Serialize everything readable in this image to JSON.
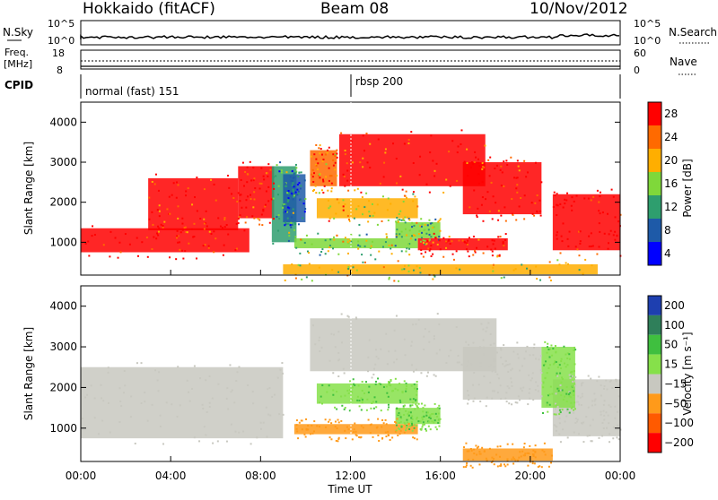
{
  "header": {
    "station": "Hokkaido (fitACF)",
    "beam": "Beam 08",
    "date": "10/Nov/2012"
  },
  "nsky_panel": {
    "left_label": "N.Sky",
    "right_label": "N.Search",
    "y_ticks": [
      "10^5",
      "10^0"
    ]
  },
  "freq_panel": {
    "left_label_top": "Freq.",
    "left_label_unit": "[MHz]",
    "right_label": "Nave",
    "left_ticks": [
      "18",
      "8"
    ],
    "right_ticks": [
      "60",
      "0"
    ]
  },
  "cpid_panel": {
    "label": "CPID",
    "entries": [
      {
        "name": "normal (fast) 151",
        "start_hour": 0
      },
      {
        "name": "rbsp 200",
        "start_hour": 12
      }
    ]
  },
  "power_panel": {
    "ylabel": "Slant Range [km]",
    "colorbar_label": "Power [dB]",
    "colorbar_ticks": [
      "28",
      "24",
      "20",
      "16",
      "12",
      "8",
      "4"
    ],
    "colors": [
      "#ff0000",
      "#ff6a00",
      "#ffae00",
      "#7fd83a",
      "#2e9e6e",
      "#1e5aa8",
      "#0000ff"
    ]
  },
  "velocity_panel": {
    "ylabel": "Slant Range [km]",
    "colorbar_label": "Velocity [m s⁻¹]",
    "colorbar_ticks": [
      "200",
      "100",
      "50",
      "15",
      "−15",
      "−50",
      "−100",
      "−200"
    ],
    "colors": [
      "#1e3fb0",
      "#2f7f5a",
      "#3fbf3f",
      "#86e04a",
      "#c8c8c0",
      "#ff9a1a",
      "#ff5a00",
      "#ff0000"
    ]
  },
  "x_axis": {
    "label": "Time UT",
    "ticks": [
      "00:00",
      "04:00",
      "08:00",
      "12:00",
      "16:00",
      "20:00",
      "00:00"
    ]
  },
  "chart_data": {
    "type": "heatmap",
    "x_unit": "hours UT",
    "xlim": [
      0,
      24
    ],
    "ylim_km": [
      180,
      4500
    ],
    "y_ticks": [
      1000,
      2000,
      3000,
      4000
    ],
    "power_regions": [
      {
        "t0": 0.0,
        "t1": 7.5,
        "r0": 750,
        "r1": 1350,
        "level": 28
      },
      {
        "t0": 3.0,
        "t1": 7.0,
        "r0": 1300,
        "r1": 2600,
        "level": 26
      },
      {
        "t0": 7.0,
        "t1": 8.6,
        "r0": 1600,
        "r1": 2900,
        "level": 26
      },
      {
        "t0": 8.5,
        "t1": 9.6,
        "r0": 1000,
        "r1": 2900,
        "level": 10
      },
      {
        "t0": 9.0,
        "t1": 10.0,
        "r0": 1500,
        "r1": 2700,
        "level": 6
      },
      {
        "t0": 10.2,
        "t1": 11.4,
        "r0": 2400,
        "r1": 3300,
        "level": 22
      },
      {
        "t0": 11.5,
        "t1": 18.0,
        "r0": 2400,
        "r1": 3700,
        "level": 24
      },
      {
        "t0": 10.5,
        "t1": 15.0,
        "r0": 1600,
        "r1": 2100,
        "level": 18
      },
      {
        "t0": 14.0,
        "t1": 16.0,
        "r0": 1100,
        "r1": 1500,
        "level": 12
      },
      {
        "t0": 9.5,
        "t1": 15.0,
        "r0": 850,
        "r1": 1100,
        "level": 14
      },
      {
        "t0": 15.0,
        "t1": 19.0,
        "r0": 800,
        "r1": 1100,
        "level": 26
      },
      {
        "t0": 17.0,
        "t1": 20.5,
        "r0": 1700,
        "r1": 3000,
        "level": 26
      },
      {
        "t0": 21.0,
        "t1": 24.0,
        "r0": 800,
        "r1": 2200,
        "level": 28
      },
      {
        "t0": 9.0,
        "t1": 23.0,
        "r0": 200,
        "r1": 450,
        "level": 16
      }
    ],
    "velocity_regions": [
      {
        "t0": 0.0,
        "t1": 9.0,
        "r0": 750,
        "r1": 2500,
        "level": 0
      },
      {
        "t0": 10.2,
        "t1": 18.5,
        "r0": 2400,
        "r1": 3700,
        "level": 0
      },
      {
        "t0": 17.0,
        "t1": 20.5,
        "r0": 1700,
        "r1": 3000,
        "level": 0
      },
      {
        "t0": 21.0,
        "t1": 24.0,
        "r0": 800,
        "r1": 2200,
        "level": 0
      },
      {
        "t0": 10.5,
        "t1": 15.0,
        "r0": 1600,
        "r1": 2100,
        "level": 30
      },
      {
        "t0": 14.0,
        "t1": 16.0,
        "r0": 1100,
        "r1": 1500,
        "level": 30
      },
      {
        "t0": 9.5,
        "t1": 15.0,
        "r0": 850,
        "r1": 1100,
        "level": -40
      },
      {
        "t0": 20.5,
        "t1": 22.0,
        "r0": 1500,
        "r1": 3000,
        "level": 30
      },
      {
        "t0": 17.0,
        "t1": 21.0,
        "r0": 200,
        "r1": 500,
        "level": -60
      }
    ]
  }
}
